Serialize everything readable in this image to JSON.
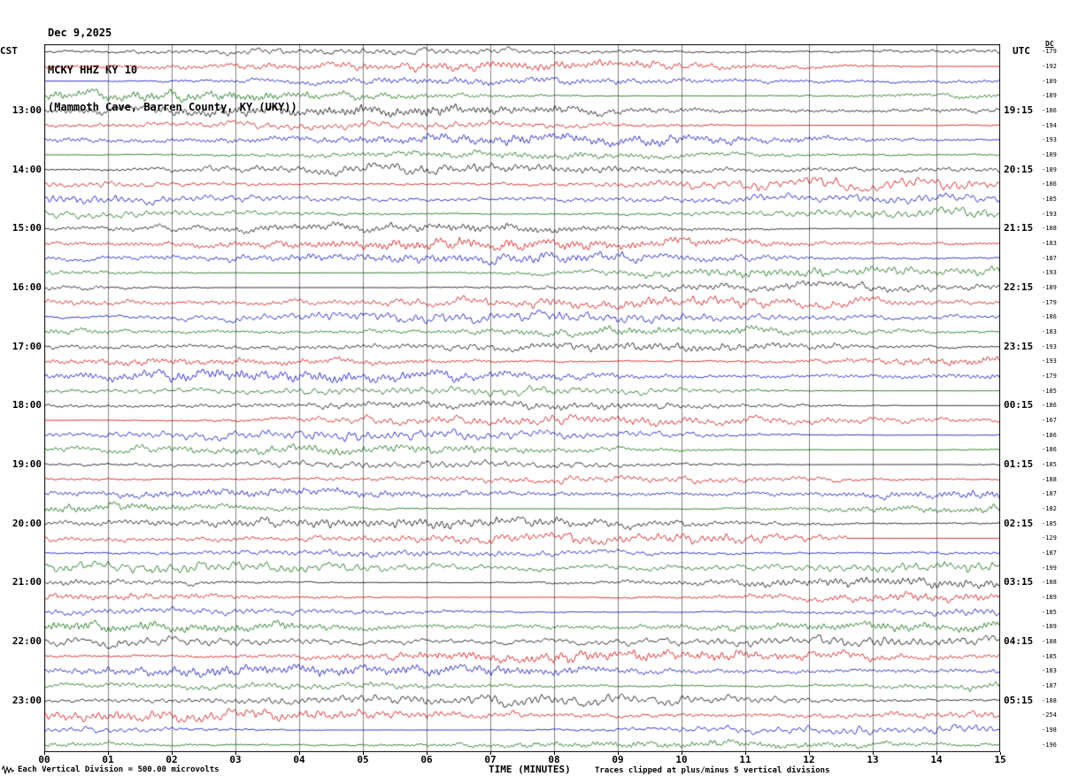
{
  "header": {
    "date": "Dec 9,2025",
    "station": "MCKY HHZ KY 10",
    "location": "(Mammoth Cave, Barren County, KY (UKY))"
  },
  "axes": {
    "left_timezone": "CST",
    "right_timezone": "UTC",
    "dc_header": "DC",
    "x_title": "TIME (MINUTES)",
    "x_ticks": [
      "00",
      "01",
      "02",
      "03",
      "04",
      "05",
      "06",
      "07",
      "08",
      "09",
      "10",
      "11",
      "12",
      "13",
      "14",
      "15"
    ]
  },
  "footer": {
    "scale_note": "Each Vertical Division =  500.00 microvolts",
    "clip_note": "Traces clipped at plus/minus 5 vertical divisions",
    "scale_icon": "waveform-scale-icon"
  },
  "chart_data": {
    "type": "line",
    "subtype": "seismogram_helicorder",
    "title": "MCKY HHZ KY 10 — Dec 9,2025",
    "xlabel": "TIME (MINUTES)",
    "x_range": [
      0,
      15
    ],
    "rows": 48,
    "minutes_per_row": 15,
    "first_row_start_cst": "12:00",
    "utc_offset_hours": 6,
    "grid": true,
    "trace_colors": [
      "#000000",
      "#cc0000",
      "#0000bb",
      "#006600"
    ],
    "grid_color": "#808080",
    "hour_label_rows": [
      4,
      8,
      12,
      16,
      20,
      24,
      28,
      32,
      36,
      40,
      44
    ],
    "left_hour_labels": [
      "13:00",
      "14:00",
      "15:00",
      "16:00",
      "17:00",
      "18:00",
      "19:00",
      "20:00",
      "21:00",
      "22:00",
      "23:00"
    ],
    "right_hour_labels": [
      "19:15",
      "20:15",
      "21:15",
      "22:15",
      "23:15",
      "00:15",
      "01:15",
      "02:15",
      "03:15",
      "04:15",
      "05:15"
    ],
    "dc_values": [
      -179,
      -192,
      -189,
      -189,
      -186,
      -194,
      -193,
      -189,
      -189,
      -186,
      -185,
      -193,
      -188,
      -183,
      -187,
      -193,
      -189,
      -179,
      -186,
      -183,
      -193,
      -193,
      -179,
      -185,
      -186,
      -167,
      -186,
      -186,
      -185,
      -188,
      -187,
      -182,
      -185,
      -129,
      -187,
      -199,
      -188,
      -189,
      -185,
      -189,
      -188,
      -185,
      -183,
      -187,
      -188,
      -254,
      -198,
      -196
    ],
    "flat_segments": [
      {
        "row": 33,
        "start_minute": 12.6,
        "end_minute": 15
      }
    ],
    "clip_divisions": 5,
    "microvolts_per_division": 500,
    "waveform_note": "Continuous ambient seismic noise on all 48 fifteen-minute traces; amplitudes stay below the ±5 division clip level; rendered procedurally."
  }
}
